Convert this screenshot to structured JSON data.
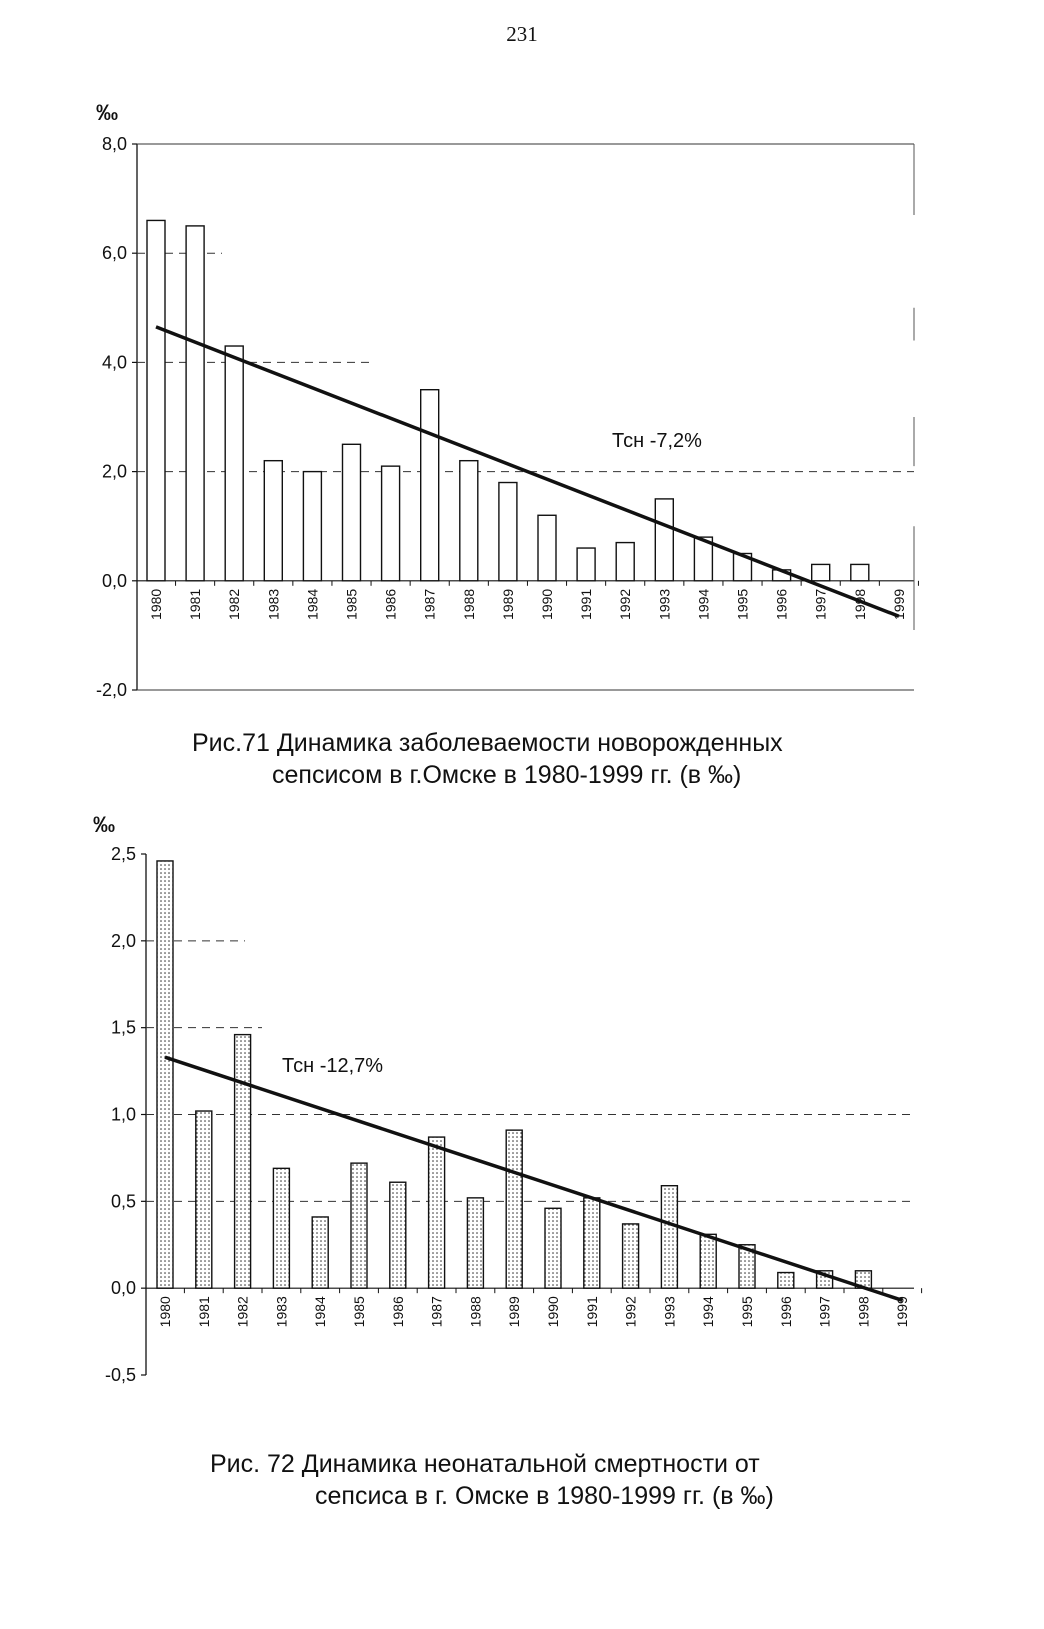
{
  "page_number": "231",
  "chart_data": [
    {
      "type": "bar",
      "unit_label": "‰",
      "caption_line1": "Рис.71 Динамика заболеваемости новорожденных",
      "caption_line2": "сепсисом в г.Омске в 1980-1999 гг. (в ‰)",
      "annotation": "Тсн -7,2%",
      "bar_fill": "none",
      "ylim": [
        -2.0,
        8.0
      ],
      "yticks": [
        -2.0,
        0.0,
        2.0,
        4.0,
        6.0,
        8.0
      ],
      "ytick_labels": [
        "-2,0",
        "0,0",
        "2,0",
        "4,0",
        "6,0",
        "8,0"
      ],
      "categories": [
        "1980",
        "1981",
        "1982",
        "1983",
        "1984",
        "1985",
        "1986",
        "1987",
        "1988",
        "1989",
        "1990",
        "1991",
        "1992",
        "1993",
        "1994",
        "1995",
        "1996",
        "1997",
        "1998",
        "1999"
      ],
      "values": [
        6.6,
        6.5,
        4.3,
        2.2,
        2.0,
        2.5,
        2.1,
        3.5,
        2.2,
        1.8,
        1.2,
        0.6,
        0.7,
        1.5,
        0.8,
        0.5,
        0.2,
        0.3,
        0.3,
        null
      ],
      "trend": {
        "start": 4.65,
        "end": -0.65
      },
      "grid": "dashed"
    },
    {
      "type": "bar",
      "unit_label": "‰",
      "caption_line1": "Рис. 72  Динамика неонатальной смертности от",
      "caption_line2": "сепсиса в г. Омске в 1980-1999 гг. (в ‰)",
      "annotation": "Тсн  -12,7%",
      "bar_fill": "dotted",
      "ylim": [
        -0.5,
        2.5
      ],
      "yticks": [
        -0.5,
        0.0,
        0.5,
        1.0,
        1.5,
        2.0,
        2.5
      ],
      "ytick_labels": [
        "-0,5",
        "0,0",
        "0,5",
        "1,0",
        "1,5",
        "2,0",
        "2,5"
      ],
      "categories": [
        "1980",
        "1981",
        "1982",
        "1983",
        "1984",
        "1985",
        "1986",
        "1987",
        "1988",
        "1989",
        "1990",
        "1991",
        "1992",
        "1993",
        "1994",
        "1995",
        "1996",
        "1997",
        "1998",
        "1999"
      ],
      "values": [
        2.46,
        1.02,
        1.46,
        0.69,
        0.41,
        0.72,
        0.61,
        0.87,
        0.52,
        0.91,
        0.46,
        0.52,
        0.37,
        0.59,
        0.31,
        0.25,
        0.09,
        0.1,
        0.1,
        null
      ],
      "trend": {
        "start": 1.33,
        "end": -0.07
      },
      "grid": "dashed"
    }
  ]
}
